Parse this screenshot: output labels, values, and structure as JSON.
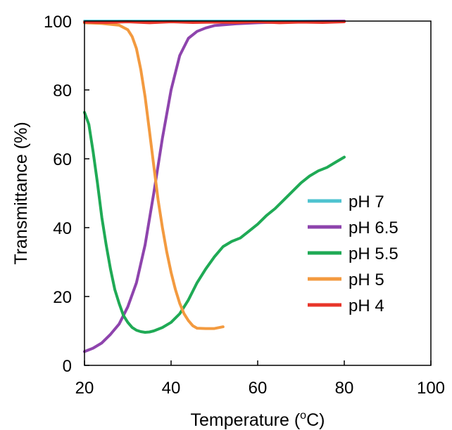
{
  "chart_data": {
    "type": "line",
    "xlabel": "Temperature",
    "xlabel_unit_prefix": "(",
    "xlabel_unit_sup": "o",
    "xlabel_unit_suffix": "C)",
    "ylabel": "Transmittance (%)",
    "xlim": [
      20,
      100
    ],
    "ylim": [
      0,
      100
    ],
    "x_ticks": [
      "20",
      "40",
      "60",
      "80",
      "100"
    ],
    "y_ticks": [
      "0",
      "20",
      "40",
      "60",
      "80",
      "100"
    ],
    "grid": false,
    "legend_position": "right",
    "series": [
      {
        "name": "pH 7",
        "color": "#4fc3d0",
        "x": [
          20,
          30,
          40,
          50,
          60,
          70,
          80
        ],
        "y": [
          100,
          100,
          100,
          100,
          100,
          100,
          100
        ]
      },
      {
        "name": "pH 6.5",
        "color": "#8e44ad",
        "x": [
          20,
          22,
          24,
          26,
          28,
          30,
          32,
          34,
          36,
          38,
          40,
          42,
          44,
          46,
          48,
          50,
          55,
          60,
          65,
          70,
          75,
          80
        ],
        "y": [
          4,
          5,
          6.5,
          9,
          12,
          17,
          24,
          35,
          50,
          66,
          80,
          90,
          95,
          97,
          98,
          98.7,
          99.2,
          99.5,
          99.7,
          99.8,
          99.9,
          100
        ]
      },
      {
        "name": "pH 5.5",
        "color": "#1faa55",
        "x": [
          20,
          21,
          22,
          23,
          24,
          25,
          26,
          27,
          28,
          29,
          30,
          31,
          32,
          33,
          34,
          35,
          36,
          38,
          40,
          42,
          44,
          46,
          48,
          50,
          52,
          54,
          56,
          58,
          60,
          62,
          64,
          66,
          68,
          70,
          72,
          74,
          76,
          78,
          80
        ],
        "y": [
          73.5,
          70,
          62,
          53,
          43,
          35,
          28,
          22,
          18,
          14.5,
          12.5,
          11,
          10.2,
          9.8,
          9.6,
          9.7,
          10,
          11,
          12.5,
          15,
          19,
          24,
          28,
          31.5,
          34.5,
          36,
          37,
          39,
          41,
          43.5,
          45.5,
          48,
          50.5,
          53,
          55,
          56.5,
          57.5,
          59,
          60.5
        ]
      },
      {
        "name": "pH 5",
        "color": "#f39a3f",
        "x": [
          20,
          24,
          28,
          30,
          31,
          32,
          33,
          34,
          35,
          36,
          37,
          38,
          39,
          40,
          41,
          42,
          43,
          44,
          45,
          46,
          48,
          50,
          52
        ],
        "y": [
          99.5,
          99.3,
          98.8,
          97.5,
          95.5,
          92,
          86,
          78,
          68,
          58,
          48,
          40,
          33,
          27,
          22,
          18,
          15,
          13,
          11.5,
          10.8,
          10.7,
          10.7,
          11.2
        ]
      },
      {
        "name": "pH 4",
        "color": "#e8352a",
        "x": [
          20,
          25,
          30,
          35,
          40,
          45,
          50,
          55,
          60,
          65,
          70,
          75,
          80
        ],
        "y": [
          99.7,
          99.6,
          99.8,
          99.5,
          99.8,
          99.6,
          99.7,
          99.6,
          99.8,
          99.5,
          99.7,
          99.6,
          99.8
        ]
      }
    ]
  }
}
